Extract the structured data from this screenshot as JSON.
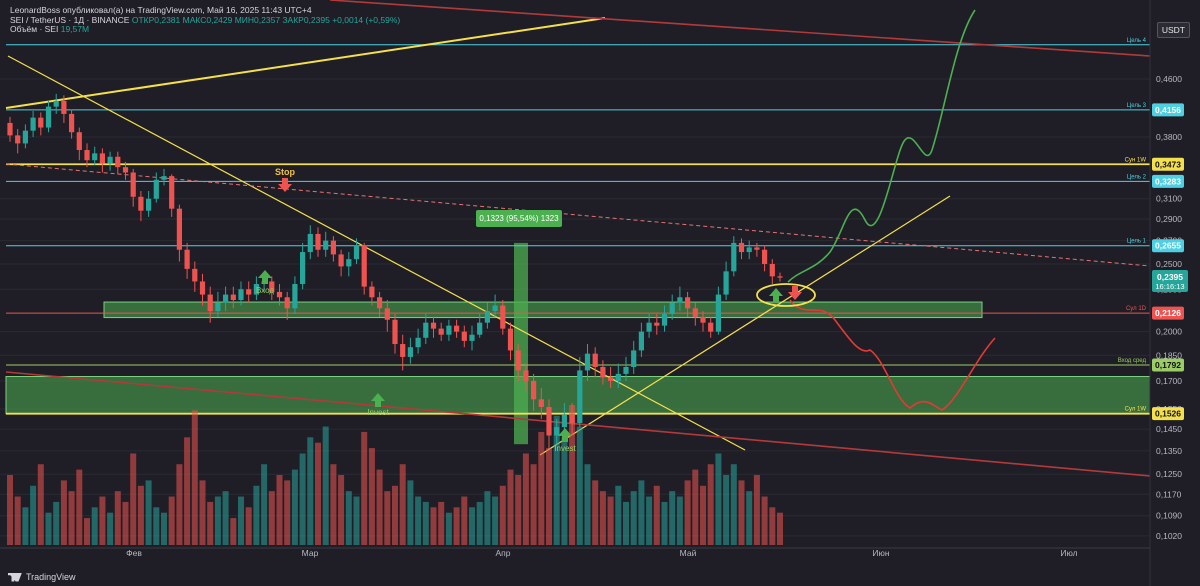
{
  "header": {
    "line1": "LeonardBoss опубликовал(а) на TradingView.com, Май 16, 2025 11:43 UTC+4",
    "symbol": "SEI / TetherUS · 1Д · BINANCE",
    "ohlc": "ОТКР0,2381 МАКС0,2429 МИН0,2357 ЗАКР0,2395 +0,0014 (+0,59%)",
    "volume_label": "Объём · SEI",
    "volume_value": "19,57M"
  },
  "currency_button": "USDT",
  "footer": {
    "brand": "TradingView"
  },
  "colors": {
    "background": "#1f1e26",
    "bull": "#26a69a",
    "bear": "#ef5350",
    "cyan_line": "#4dd0e1",
    "yellow_line": "#f4e04d",
    "zone_green": "#4caf50",
    "path_green": "#4caf50",
    "path_red": "#e53935"
  },
  "chart_data": {
    "type": "candlestick",
    "y_scale": "log",
    "ylim": [
      0.098,
      0.57
    ],
    "y_ticks": [
      "0,4600",
      "0,4156",
      "0,3800",
      "0,3473",
      "0,3283",
      "0,3100",
      "0,2900",
      "0,2700",
      "0,2655",
      "0,2500",
      "0,2395",
      "0,2300",
      "0,2126",
      "0,2000",
      "0,1850",
      "0,1792",
      "0,1700",
      "0,1550",
      "0,1526",
      "0,1450",
      "0,1350",
      "0,1250",
      "0,1170",
      "0,1090",
      "0,1020"
    ],
    "x_ticks": [
      "Фев",
      "Мар",
      "Апр",
      "Май",
      "Июн",
      "Июл"
    ],
    "levels": [
      {
        "price": 0.515,
        "label": "Цель 4",
        "color": "#4dd0e1"
      },
      {
        "price": 0.4156,
        "label": "Цель 3",
        "color": "#4dd0e1",
        "badge": "0,4156"
      },
      {
        "price": 0.3473,
        "label": "Сун 1W",
        "color": "#f4e04d",
        "badge": "0,3473"
      },
      {
        "price": 0.3283,
        "label": "Цель 2",
        "color": "#4dd0e1",
        "badge": "0,3283"
      },
      {
        "price": 0.2655,
        "label": "Цель 1",
        "color": "#4dd0e1",
        "badge": "0,2655"
      },
      {
        "price": 0.2126,
        "label": "Сул 1D",
        "color": "#ef5350",
        "badge": "0,2126"
      },
      {
        "price": 0.1792,
        "label": "Вход сред",
        "color": "#9ccc65",
        "badge": "0,1792"
      },
      {
        "price": 0.1526,
        "label": "Сул 1W",
        "color": "#f4e04d",
        "badge": "0,1526"
      }
    ],
    "last_price": {
      "value": "0,2395",
      "timer": "16:16:13"
    },
    "annotations": [
      {
        "text": "Stop",
        "color": "#ef5350"
      },
      {
        "text": "Вход",
        "color": "#4caf50"
      },
      {
        "text": "Invest",
        "color": "#4caf50"
      },
      {
        "text": "Invest",
        "color": "#4caf50"
      }
    ],
    "measure_label": "0,1323 (95,54%) 1323",
    "candles": [
      [
        0.398,
        0.382,
        0.406,
        0.374
      ],
      [
        0.382,
        0.372,
        0.39,
        0.36
      ],
      [
        0.372,
        0.388,
        0.396,
        0.366
      ],
      [
        0.388,
        0.405,
        0.414,
        0.38
      ],
      [
        0.405,
        0.392,
        0.412,
        0.382
      ],
      [
        0.392,
        0.42,
        0.428,
        0.386
      ],
      [
        0.42,
        0.428,
        0.438,
        0.41
      ],
      [
        0.428,
        0.41,
        0.436,
        0.398
      ],
      [
        0.41,
        0.386,
        0.416,
        0.378
      ],
      [
        0.386,
        0.364,
        0.392,
        0.352
      ],
      [
        0.364,
        0.352,
        0.372,
        0.344
      ],
      [
        0.352,
        0.36,
        0.368,
        0.346
      ],
      [
        0.36,
        0.348,
        0.366,
        0.338
      ],
      [
        0.348,
        0.356,
        0.362,
        0.34
      ],
      [
        0.356,
        0.344,
        0.362,
        0.336
      ],
      [
        0.344,
        0.338,
        0.35,
        0.33
      ],
      [
        0.338,
        0.312,
        0.342,
        0.302
      ],
      [
        0.312,
        0.298,
        0.318,
        0.288
      ],
      [
        0.298,
        0.31,
        0.318,
        0.292
      ],
      [
        0.31,
        0.33,
        0.338,
        0.306
      ],
      [
        0.33,
        0.334,
        0.342,
        0.324
      ],
      [
        0.334,
        0.3,
        0.336,
        0.292
      ],
      [
        0.3,
        0.262,
        0.304,
        0.252
      ],
      [
        0.262,
        0.246,
        0.268,
        0.238
      ],
      [
        0.246,
        0.236,
        0.252,
        0.228
      ],
      [
        0.236,
        0.226,
        0.242,
        0.218
      ],
      [
        0.226,
        0.214,
        0.232,
        0.206
      ],
      [
        0.214,
        0.22,
        0.228,
        0.21
      ],
      [
        0.22,
        0.226,
        0.232,
        0.214
      ],
      [
        0.226,
        0.222,
        0.232,
        0.216
      ],
      [
        0.222,
        0.23,
        0.236,
        0.218
      ],
      [
        0.23,
        0.226,
        0.236,
        0.22
      ],
      [
        0.226,
        0.234,
        0.24,
        0.222
      ],
      [
        0.234,
        0.236,
        0.242,
        0.228
      ],
      [
        0.236,
        0.228,
        0.24,
        0.222
      ],
      [
        0.228,
        0.224,
        0.234,
        0.218
      ],
      [
        0.224,
        0.216,
        0.228,
        0.208
      ],
      [
        0.216,
        0.234,
        0.24,
        0.212
      ],
      [
        0.234,
        0.26,
        0.268,
        0.23
      ],
      [
        0.26,
        0.276,
        0.284,
        0.254
      ],
      [
        0.276,
        0.262,
        0.282,
        0.256
      ],
      [
        0.262,
        0.27,
        0.278,
        0.256
      ],
      [
        0.27,
        0.258,
        0.274,
        0.252
      ],
      [
        0.258,
        0.248,
        0.262,
        0.24
      ],
      [
        0.248,
        0.254,
        0.26,
        0.24
      ],
      [
        0.254,
        0.266,
        0.272,
        0.25
      ],
      [
        0.266,
        0.232,
        0.268,
        0.226
      ],
      [
        0.232,
        0.224,
        0.236,
        0.218
      ],
      [
        0.224,
        0.216,
        0.228,
        0.21
      ],
      [
        0.216,
        0.208,
        0.222,
        0.2
      ],
      [
        0.208,
        0.192,
        0.212,
        0.186
      ],
      [
        0.192,
        0.184,
        0.198,
        0.176
      ],
      [
        0.184,
        0.19,
        0.196,
        0.18
      ],
      [
        0.19,
        0.196,
        0.202,
        0.186
      ],
      [
        0.196,
        0.206,
        0.212,
        0.192
      ],
      [
        0.206,
        0.202,
        0.21,
        0.196
      ],
      [
        0.202,
        0.198,
        0.206,
        0.194
      ],
      [
        0.198,
        0.204,
        0.208,
        0.194
      ],
      [
        0.204,
        0.2,
        0.208,
        0.196
      ],
      [
        0.2,
        0.194,
        0.204,
        0.19
      ],
      [
        0.194,
        0.198,
        0.204,
        0.188
      ],
      [
        0.198,
        0.206,
        0.212,
        0.196
      ],
      [
        0.206,
        0.214,
        0.22,
        0.202
      ],
      [
        0.214,
        0.218,
        0.226,
        0.21
      ],
      [
        0.218,
        0.202,
        0.222,
        0.198
      ],
      [
        0.202,
        0.188,
        0.206,
        0.182
      ],
      [
        0.188,
        0.176,
        0.192,
        0.17
      ],
      [
        0.176,
        0.17,
        0.18,
        0.164
      ],
      [
        0.17,
        0.16,
        0.174,
        0.154
      ],
      [
        0.16,
        0.156,
        0.166,
        0.15
      ],
      [
        0.156,
        0.142,
        0.16,
        0.136
      ],
      [
        0.142,
        0.146,
        0.15,
        0.138
      ],
      [
        0.146,
        0.152,
        0.158,
        0.14
      ],
      [
        0.152,
        0.148,
        0.158,
        0.142
      ],
      [
        0.148,
        0.176,
        0.184,
        0.146
      ],
      [
        0.176,
        0.186,
        0.192,
        0.17
      ],
      [
        0.186,
        0.178,
        0.19,
        0.172
      ],
      [
        0.178,
        0.172,
        0.182,
        0.168
      ],
      [
        0.172,
        0.17,
        0.178,
        0.166
      ],
      [
        0.17,
        0.174,
        0.18,
        0.166
      ],
      [
        0.174,
        0.178,
        0.184,
        0.17
      ],
      [
        0.178,
        0.188,
        0.194,
        0.174
      ],
      [
        0.188,
        0.2,
        0.206,
        0.184
      ],
      [
        0.2,
        0.206,
        0.212,
        0.196
      ],
      [
        0.206,
        0.204,
        0.212,
        0.198
      ],
      [
        0.204,
        0.212,
        0.218,
        0.2
      ],
      [
        0.212,
        0.22,
        0.226,
        0.208
      ],
      [
        0.22,
        0.224,
        0.232,
        0.214
      ],
      [
        0.224,
        0.216,
        0.228,
        0.21
      ],
      [
        0.216,
        0.21,
        0.22,
        0.204
      ],
      [
        0.21,
        0.206,
        0.214,
        0.2
      ],
      [
        0.206,
        0.2,
        0.21,
        0.196
      ],
      [
        0.2,
        0.226,
        0.232,
        0.198
      ],
      [
        0.226,
        0.244,
        0.252,
        0.222
      ],
      [
        0.244,
        0.268,
        0.274,
        0.24
      ],
      [
        0.268,
        0.26,
        0.272,
        0.254
      ],
      [
        0.26,
        0.264,
        0.27,
        0.254
      ],
      [
        0.264,
        0.262,
        0.268,
        0.256
      ],
      [
        0.262,
        0.25,
        0.266,
        0.244
      ],
      [
        0.25,
        0.24,
        0.254,
        0.234
      ],
      [
        0.24,
        0.239,
        0.243,
        0.236
      ]
    ],
    "volumes": [
      26,
      18,
      14,
      22,
      30,
      12,
      16,
      24,
      20,
      28,
      10,
      14,
      18,
      12,
      20,
      16,
      34,
      22,
      24,
      14,
      12,
      18,
      30,
      40,
      50,
      24,
      16,
      18,
      20,
      10,
      18,
      14,
      22,
      30,
      20,
      26,
      24,
      28,
      34,
      40,
      38,
      44,
      30,
      26,
      20,
      18,
      42,
      36,
      28,
      20,
      22,
      30,
      24,
      18,
      16,
      14,
      16,
      12,
      14,
      18,
      14,
      16,
      20,
      18,
      22,
      28,
      26,
      34,
      30,
      42,
      36,
      48,
      40,
      52,
      44,
      30,
      24,
      20,
      18,
      22,
      16,
      20,
      24,
      18,
      22,
      16,
      20,
      18,
      24,
      28,
      22,
      30,
      34,
      26,
      30,
      24,
      20,
      26,
      18,
      14,
      12
    ]
  }
}
